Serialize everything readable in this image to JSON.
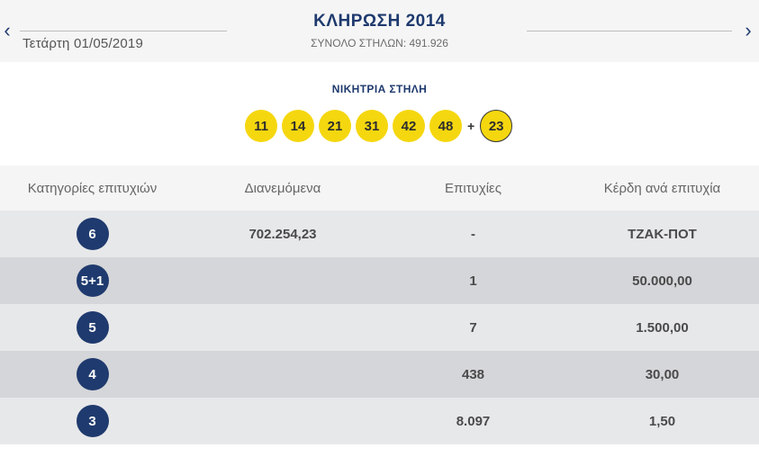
{
  "header": {
    "date": "Τετάρτη 01/05/2019",
    "title": "ΚΛΗΡΩΣΗ 2014",
    "total_columns": "ΣΥΝΟΛΟ ΣΤΗΛΩΝ: 491.926",
    "prev_icon": "chevron-left-icon",
    "next_icon": "chevron-right-icon"
  },
  "winning": {
    "label": "ΝΙΚΗΤΡΙΑ ΣΤΗΛΗ",
    "numbers": [
      "11",
      "14",
      "21",
      "31",
      "42",
      "48"
    ],
    "plus": "+",
    "bonus": "23",
    "ball_color": "#f5d70f"
  },
  "table": {
    "headers": [
      "Κατηγορίες επιτυχιών",
      "Διανεμόμενα",
      "Επιτυχίες",
      "Κέρδη ανά επιτυχία"
    ],
    "badge_color": "#1f3a6e",
    "rows": [
      {
        "category": "6",
        "distributed": "702.254,23",
        "winners": "-",
        "prize": "ΤΖΑΚ-ΠΟΤ"
      },
      {
        "category": "5+1",
        "distributed": "",
        "winners": "1",
        "prize": "50.000,00"
      },
      {
        "category": "5",
        "distributed": "",
        "winners": "7",
        "prize": "1.500,00"
      },
      {
        "category": "4",
        "distributed": "",
        "winners": "438",
        "prize": "30,00"
      },
      {
        "category": "3",
        "distributed": "",
        "winners": "8.097",
        "prize": "1,50"
      }
    ]
  }
}
